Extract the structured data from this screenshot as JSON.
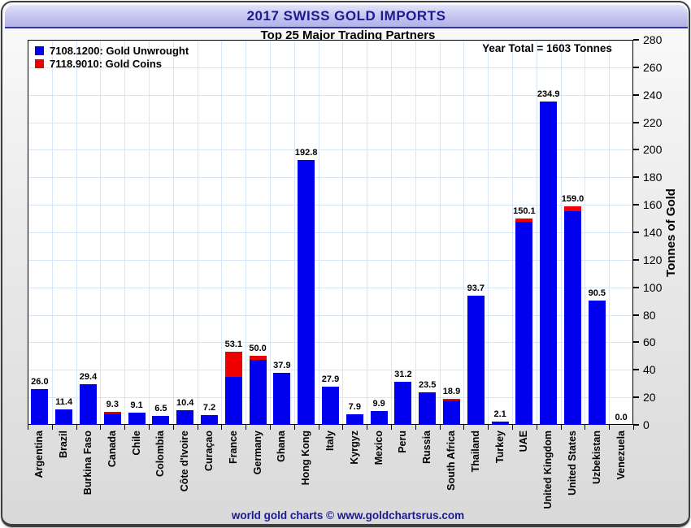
{
  "header": {
    "title": "2017 SWISS GOLD IMPORTS",
    "subtitle": "Top 25 Major Trading Partners"
  },
  "legend": {
    "items": [
      {
        "label": "7108.1200: Gold Unwrought",
        "color": "#0000EE"
      },
      {
        "label": "7118.9010: Gold Coins",
        "color": "#EE0000"
      }
    ]
  },
  "annotation": {
    "year_total": "Year Total = 1603 Tonnes"
  },
  "chart_data": {
    "type": "bar",
    "stacked": true,
    "title": "2017 SWISS GOLD IMPORTS",
    "subtitle": "Top 25 Major Trading Partners",
    "annotation": "Year Total = 1603 Tonnes",
    "categories": [
      "Argentina",
      "Brazil",
      "Burkina Faso",
      "Canada",
      "Chile",
      "Colombia",
      "Côte d'Ivoire",
      "Curaçao",
      "France",
      "Germany",
      "Ghana",
      "Hong Kong",
      "Italy",
      "Kyrgyz",
      "Mexico",
      "Peru",
      "Russia",
      "South Africa",
      "Thailand",
      "Turkey",
      "UAE",
      "United Kingdom",
      "United States",
      "Uzbekistan",
      "Venezuela"
    ],
    "series": [
      {
        "name": "7108.1200: Gold Unwrought",
        "color": "#0000EE",
        "values": [
          26.0,
          11.4,
          29.4,
          8.3,
          9.1,
          6.5,
          10.4,
          7.2,
          35.0,
          47.2,
          37.9,
          192.8,
          27.9,
          7.9,
          9.9,
          31.2,
          23.5,
          17.6,
          93.7,
          2.1,
          147.6,
          234.9,
          155.5,
          90.5,
          0.0
        ]
      },
      {
        "name": "7118.9010: Gold Coins",
        "color": "#EE0000",
        "values": [
          0.0,
          0.0,
          0.0,
          1.0,
          0.0,
          0.0,
          0.0,
          0.0,
          18.1,
          2.8,
          0.0,
          0.0,
          0.0,
          0.0,
          0.0,
          0.0,
          0.0,
          1.3,
          0.0,
          0.0,
          2.5,
          0.0,
          3.5,
          0.0,
          0.0
        ]
      }
    ],
    "value_labels": [
      "26.0",
      "11.4",
      "29.4",
      "9.3",
      "9.1",
      "6.5",
      "10.4",
      "7.2",
      "53.1",
      "50.0",
      "37.9",
      "192.8",
      "27.9",
      "7.9",
      "9.9",
      "31.2",
      "23.5",
      "18.9",
      "93.7",
      "2.1",
      "150.1",
      "234.9",
      "159.0",
      "90.5",
      "0.0"
    ],
    "xlabel": "",
    "ylabel": "Tonnes of Gold",
    "ylim": [
      0,
      280
    ],
    "ytick_step": 20,
    "grid": true,
    "legend_position": "top-left"
  },
  "footer": {
    "credit": "world gold charts © www.goldchartsrus.com"
  },
  "colors": {
    "title_text": "#1b1b8f",
    "titlebar_fill": "#c4c4ef",
    "gridline": "#d9e6f5",
    "bar_unwrought": "#0000EE",
    "bar_coins": "#EE0000",
    "footer_text": "#1b1b8f"
  }
}
